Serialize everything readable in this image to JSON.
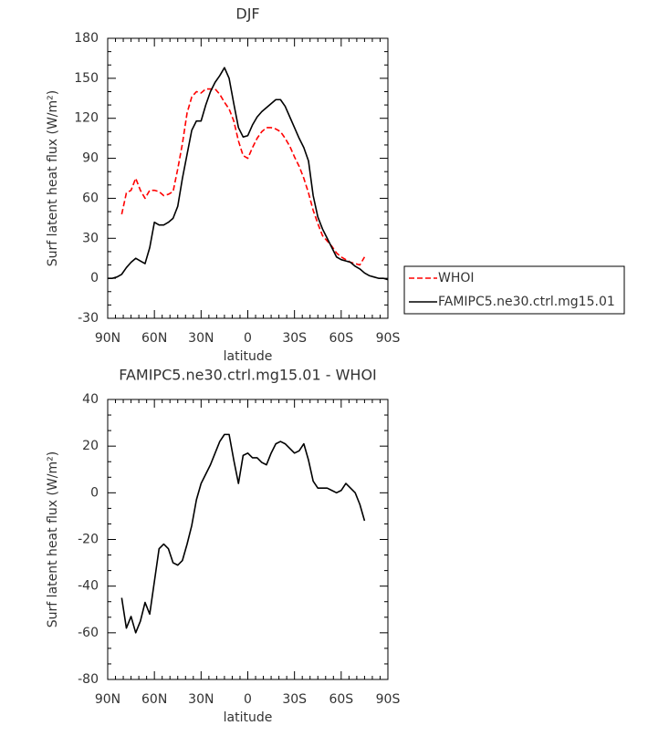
{
  "chart_data": [
    {
      "type": "line",
      "title": "DJF",
      "x_label": "latitude",
      "y_label": "Surf latent heat flux (W/m²)",
      "x": [
        90,
        87,
        84,
        81,
        78,
        75,
        72,
        69,
        66,
        63,
        60,
        57,
        54,
        51,
        48,
        45,
        42,
        39,
        36,
        33,
        30,
        27,
        24,
        21,
        18,
        15,
        12,
        9,
        6,
        3,
        0,
        -3,
        -6,
        -9,
        -12,
        -15,
        -18,
        -21,
        -24,
        -27,
        -30,
        -33,
        -36,
        -39,
        -42,
        -45,
        -48,
        -51,
        -54,
        -57,
        -60,
        -63,
        -66,
        -69,
        -72,
        -75,
        -78,
        -81,
        -84,
        -87,
        -90
      ],
      "series": [
        {
          "name": "WHOI",
          "color": "#ff0000",
          "linestyle": "dashed",
          "values": [
            null,
            null,
            null,
            48,
            64,
            66,
            75,
            66,
            60,
            66,
            66,
            65,
            62,
            63,
            65,
            82,
            101,
            124,
            136,
            140,
            139,
            142,
            142,
            142,
            138,
            132,
            127,
            118,
            103,
            92,
            90,
            98,
            105,
            110,
            113,
            113,
            112,
            110,
            105,
            99,
            91,
            84,
            75,
            64,
            51,
            41,
            32,
            28,
            24,
            19,
            16,
            14,
            12,
            11,
            10,
            16,
            null,
            null,
            null,
            null,
            null
          ]
        },
        {
          "name": "FAMIPC5.ne30.ctrl.mg15.01",
          "color": "#000000",
          "linestyle": "solid",
          "values": [
            0,
            0,
            1,
            3,
            8,
            12,
            15,
            13,
            11,
            23,
            42,
            40,
            40,
            42,
            45,
            54,
            75,
            93,
            111,
            118,
            118,
            130,
            140,
            147,
            152,
            158,
            150,
            131,
            113,
            106,
            107,
            115,
            121,
            125,
            128,
            131,
            134,
            134,
            129,
            121,
            113,
            105,
            98,
            88,
            62,
            46,
            37,
            30,
            23,
            16,
            14,
            13,
            12,
            9,
            7,
            4,
            2,
            1,
            0,
            0,
            -1
          ]
        }
      ],
      "xlim": [
        90,
        -90
      ],
      "xticks": [
        {
          "value": 90,
          "label": "90N"
        },
        {
          "value": 60,
          "label": "60N"
        },
        {
          "value": 30,
          "label": "30N"
        },
        0,
        {
          "value": -30,
          "label": "30S"
        },
        {
          "value": -60,
          "label": "60S"
        },
        {
          "value": -90,
          "label": "90S"
        }
      ],
      "ylim": [
        -30,
        180
      ],
      "yticks": [
        -30,
        0,
        30,
        60,
        90,
        120,
        150,
        180
      ],
      "legend": "outside right"
    },
    {
      "type": "line",
      "title": "FAMIPC5.ne30.ctrl.mg15.01 - WHOI",
      "x_label": "latitude",
      "y_label": "Surf latent heat flux (W/m²)",
      "x": [
        90,
        87,
        84,
        81,
        78,
        75,
        72,
        69,
        66,
        63,
        60,
        57,
        54,
        51,
        48,
        45,
        42,
        39,
        36,
        33,
        30,
        27,
        24,
        21,
        18,
        15,
        12,
        9,
        6,
        3,
        0,
        -3,
        -6,
        -9,
        -12,
        -15,
        -18,
        -21,
        -24,
        -27,
        -30,
        -33,
        -36,
        -39,
        -42,
        -45,
        -48,
        -51,
        -54,
        -57,
        -60,
        -63,
        -66,
        -69,
        -72,
        -75,
        -78,
        -81,
        -84,
        -87,
        -90
      ],
      "series": [
        {
          "color": "#000000",
          "linestyle": "solid",
          "values": [
            null,
            null,
            null,
            -45,
            -58,
            -53,
            -60,
            -55,
            -47,
            -52,
            -38,
            -24,
            -22,
            -24,
            -30,
            -31,
            -29,
            -22,
            -14,
            -3,
            4,
            8,
            12,
            17,
            22,
            25,
            25,
            14,
            4,
            16,
            17,
            15,
            15,
            13,
            12,
            17,
            21,
            22,
            21,
            19,
            17,
            18,
            21,
            14,
            5,
            2,
            2,
            2,
            1,
            0,
            1,
            4,
            2,
            0,
            -5,
            -12,
            null,
            null,
            null,
            null,
            null
          ]
        }
      ],
      "xlim": [
        90,
        -90
      ],
      "xticks": [
        {
          "value": 90,
          "label": "90N"
        },
        {
          "value": 60,
          "label": "60N"
        },
        {
          "value": 30,
          "label": "30N"
        },
        0,
        {
          "value": -30,
          "label": "30S"
        },
        {
          "value": -60,
          "label": "60S"
        },
        {
          "value": -90,
          "label": "90S"
        }
      ],
      "ylim": [
        -80,
        40
      ],
      "yticks": [
        -80,
        -60,
        -40,
        -20,
        0,
        20,
        40
      ]
    }
  ]
}
